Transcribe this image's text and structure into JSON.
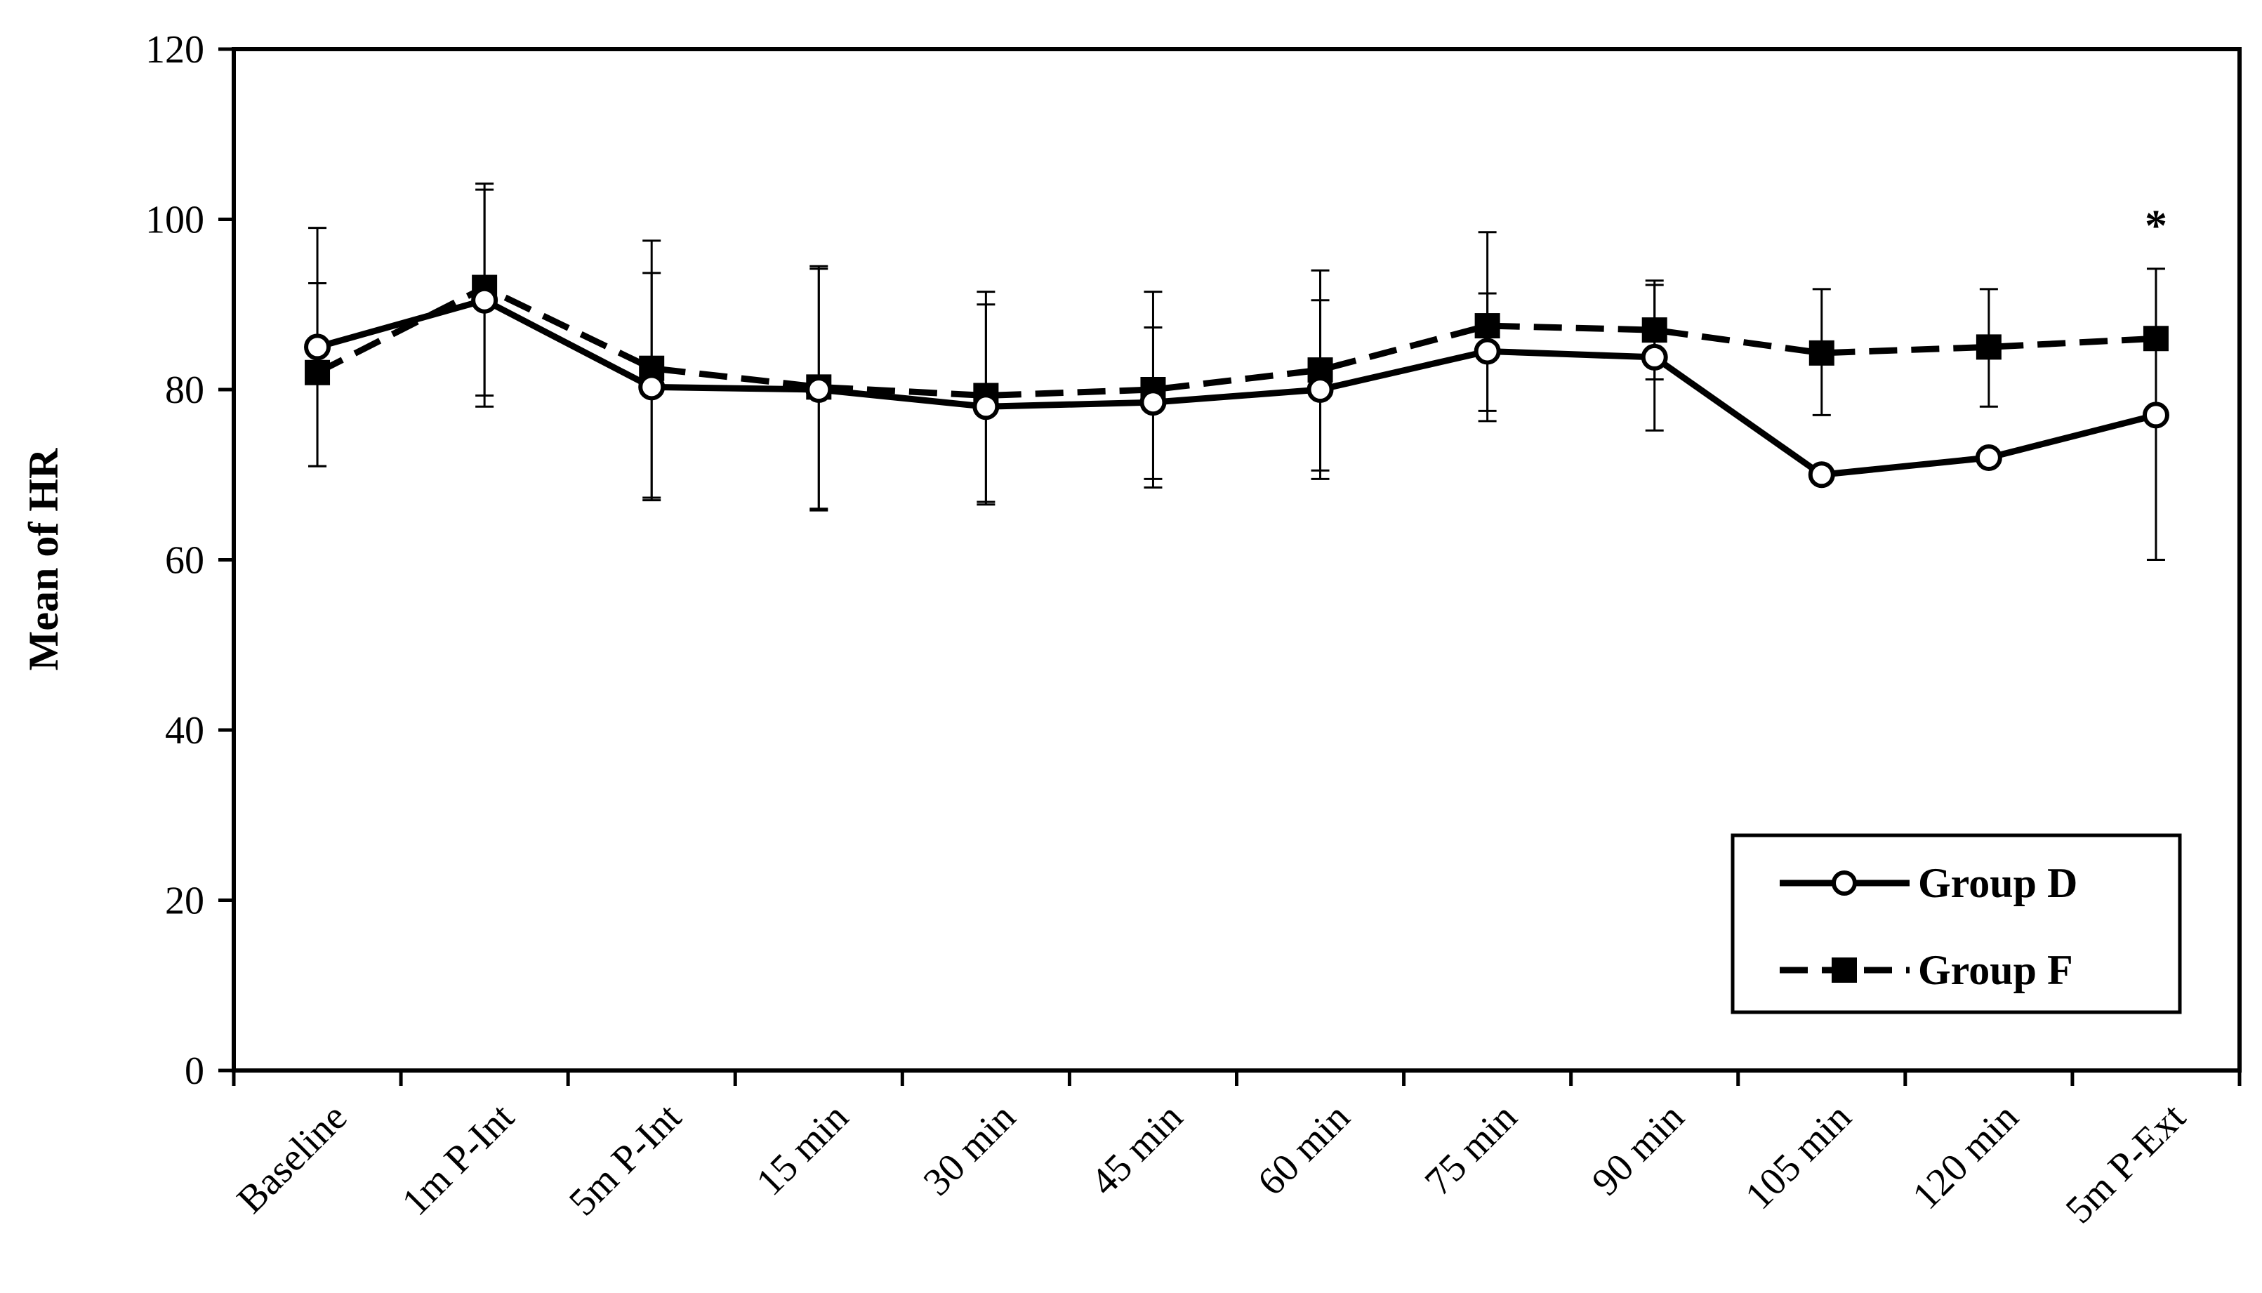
{
  "chart_data": {
    "type": "line",
    "title": "",
    "xlabel": "",
    "ylabel": "Mean of HR",
    "ylim": [
      0,
      120
    ],
    "yticks": [
      0,
      20,
      40,
      60,
      80,
      100,
      120
    ],
    "grid": false,
    "legend_position": "bottom-right",
    "categories": [
      "Baseline",
      "1m P-Int",
      "5m P-Int",
      "15 min",
      "30 min",
      "45 min",
      "60 min",
      "75 min",
      "90 min",
      "105 min",
      "120 min",
      "5m P-Ext"
    ],
    "series": [
      {
        "name": "Group D",
        "line_style": "solid",
        "marker": "open-circle",
        "color": "#000000",
        "values": [
          85,
          90.5,
          80.3,
          80,
          78,
          78.5,
          80,
          84.5,
          83.8,
          70,
          72,
          77
        ],
        "error": [
          null,
          null,
          null,
          null,
          null,
          null,
          null,
          null,
          null,
          null,
          null,
          8.5
        ]
      },
      {
        "name": "Group F",
        "line_style": "dashed",
        "marker": "filled-square",
        "color": "#000000",
        "values": [
          82,
          92,
          82.5,
          80.3,
          79.3,
          80,
          82.3,
          87.5,
          87,
          84.3,
          85,
          86
        ]
      }
    ],
    "error_bars": [
      {
        "category": "Baseline",
        "upper": 99,
        "lower": 71
      },
      {
        "category": "Baseline",
        "upper": 92.5,
        "lower": 71
      },
      {
        "category": "1m P-Int",
        "upper": 104.2,
        "lower": 78
      },
      {
        "category": "1m P-Int",
        "upper": 103.5,
        "lower": 79.3
      },
      {
        "category": "5m P-Int",
        "upper": 97.5,
        "lower": 67.3
      },
      {
        "category": "5m P-Int",
        "upper": 93.7,
        "lower": 67
      },
      {
        "category": "15 min",
        "upper": 94.5,
        "lower": 66
      },
      {
        "category": "15 min",
        "upper": 94.2,
        "lower": 65.8
      },
      {
        "category": "30 min",
        "upper": 91.5,
        "lower": 66.8
      },
      {
        "category": "30 min",
        "upper": 90,
        "lower": 66.5
      },
      {
        "category": "45 min",
        "upper": 91.5,
        "lower": 69.5
      },
      {
        "category": "45 min",
        "upper": 87.3,
        "lower": 68.5
      },
      {
        "category": "60 min",
        "upper": 94,
        "lower": 70.5
      },
      {
        "category": "60 min",
        "upper": 90.5,
        "lower": 69.5
      },
      {
        "category": "75 min",
        "upper": 98.5,
        "lower": 77.5
      },
      {
        "category": "75 min",
        "upper": 91.3,
        "lower": 76.3
      },
      {
        "category": "90 min",
        "upper": 92.8,
        "lower": 81.2
      },
      {
        "category": "90 min",
        "upper": 92.3,
        "lower": 75.2
      },
      {
        "category": "105 min",
        "upper": 91.8,
        "lower": 77
      },
      {
        "category": "120 min",
        "upper": 91.8,
        "lower": 78
      },
      {
        "category": "5m P-Ext",
        "upper": 94.2,
        "lower": 60
      }
    ],
    "annotations": [
      {
        "text": "*",
        "category": "5m P-Ext",
        "y": 100
      }
    ]
  }
}
